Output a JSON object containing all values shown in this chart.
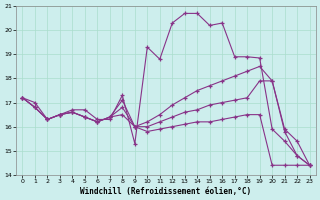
{
  "xlabel": "Windchill (Refroidissement éolien,°C)",
  "background_color": "#cdeeed",
  "grid_color": "#aaddcc",
  "line_color": "#883388",
  "xlim": [
    -0.5,
    23.5
  ],
  "ylim": [
    14,
    21
  ],
  "yticks": [
    14,
    15,
    16,
    17,
    18,
    19,
    20,
    21
  ],
  "xticks": [
    0,
    1,
    2,
    3,
    4,
    5,
    6,
    7,
    8,
    9,
    10,
    11,
    12,
    13,
    14,
    15,
    16,
    17,
    18,
    19,
    20,
    21,
    22,
    23
  ],
  "series": [
    [
      17.2,
      17.0,
      16.3,
      16.5,
      16.7,
      16.7,
      16.3,
      16.3,
      17.3,
      15.3,
      19.3,
      18.8,
      20.3,
      20.7,
      20.7,
      20.2,
      20.3,
      18.9,
      18.9,
      18.85,
      15.9,
      15.4,
      14.8,
      14.4
    ],
    [
      17.2,
      16.8,
      16.3,
      16.5,
      16.6,
      16.4,
      16.2,
      16.4,
      17.1,
      16.0,
      16.2,
      16.5,
      16.9,
      17.2,
      17.5,
      17.7,
      17.9,
      18.1,
      18.3,
      18.5,
      17.9,
      15.9,
      15.4,
      14.4
    ],
    [
      17.2,
      16.8,
      16.3,
      16.5,
      16.6,
      16.4,
      16.2,
      16.4,
      16.8,
      16.0,
      16.0,
      16.2,
      16.4,
      16.6,
      16.7,
      16.9,
      17.0,
      17.1,
      17.2,
      17.9,
      17.9,
      15.8,
      14.8,
      14.4
    ],
    [
      17.2,
      16.8,
      16.3,
      16.5,
      16.6,
      16.4,
      16.2,
      16.4,
      16.5,
      16.0,
      15.8,
      15.9,
      16.0,
      16.1,
      16.2,
      16.2,
      16.3,
      16.4,
      16.5,
      16.5,
      14.4,
      14.4,
      14.4,
      14.4
    ]
  ]
}
